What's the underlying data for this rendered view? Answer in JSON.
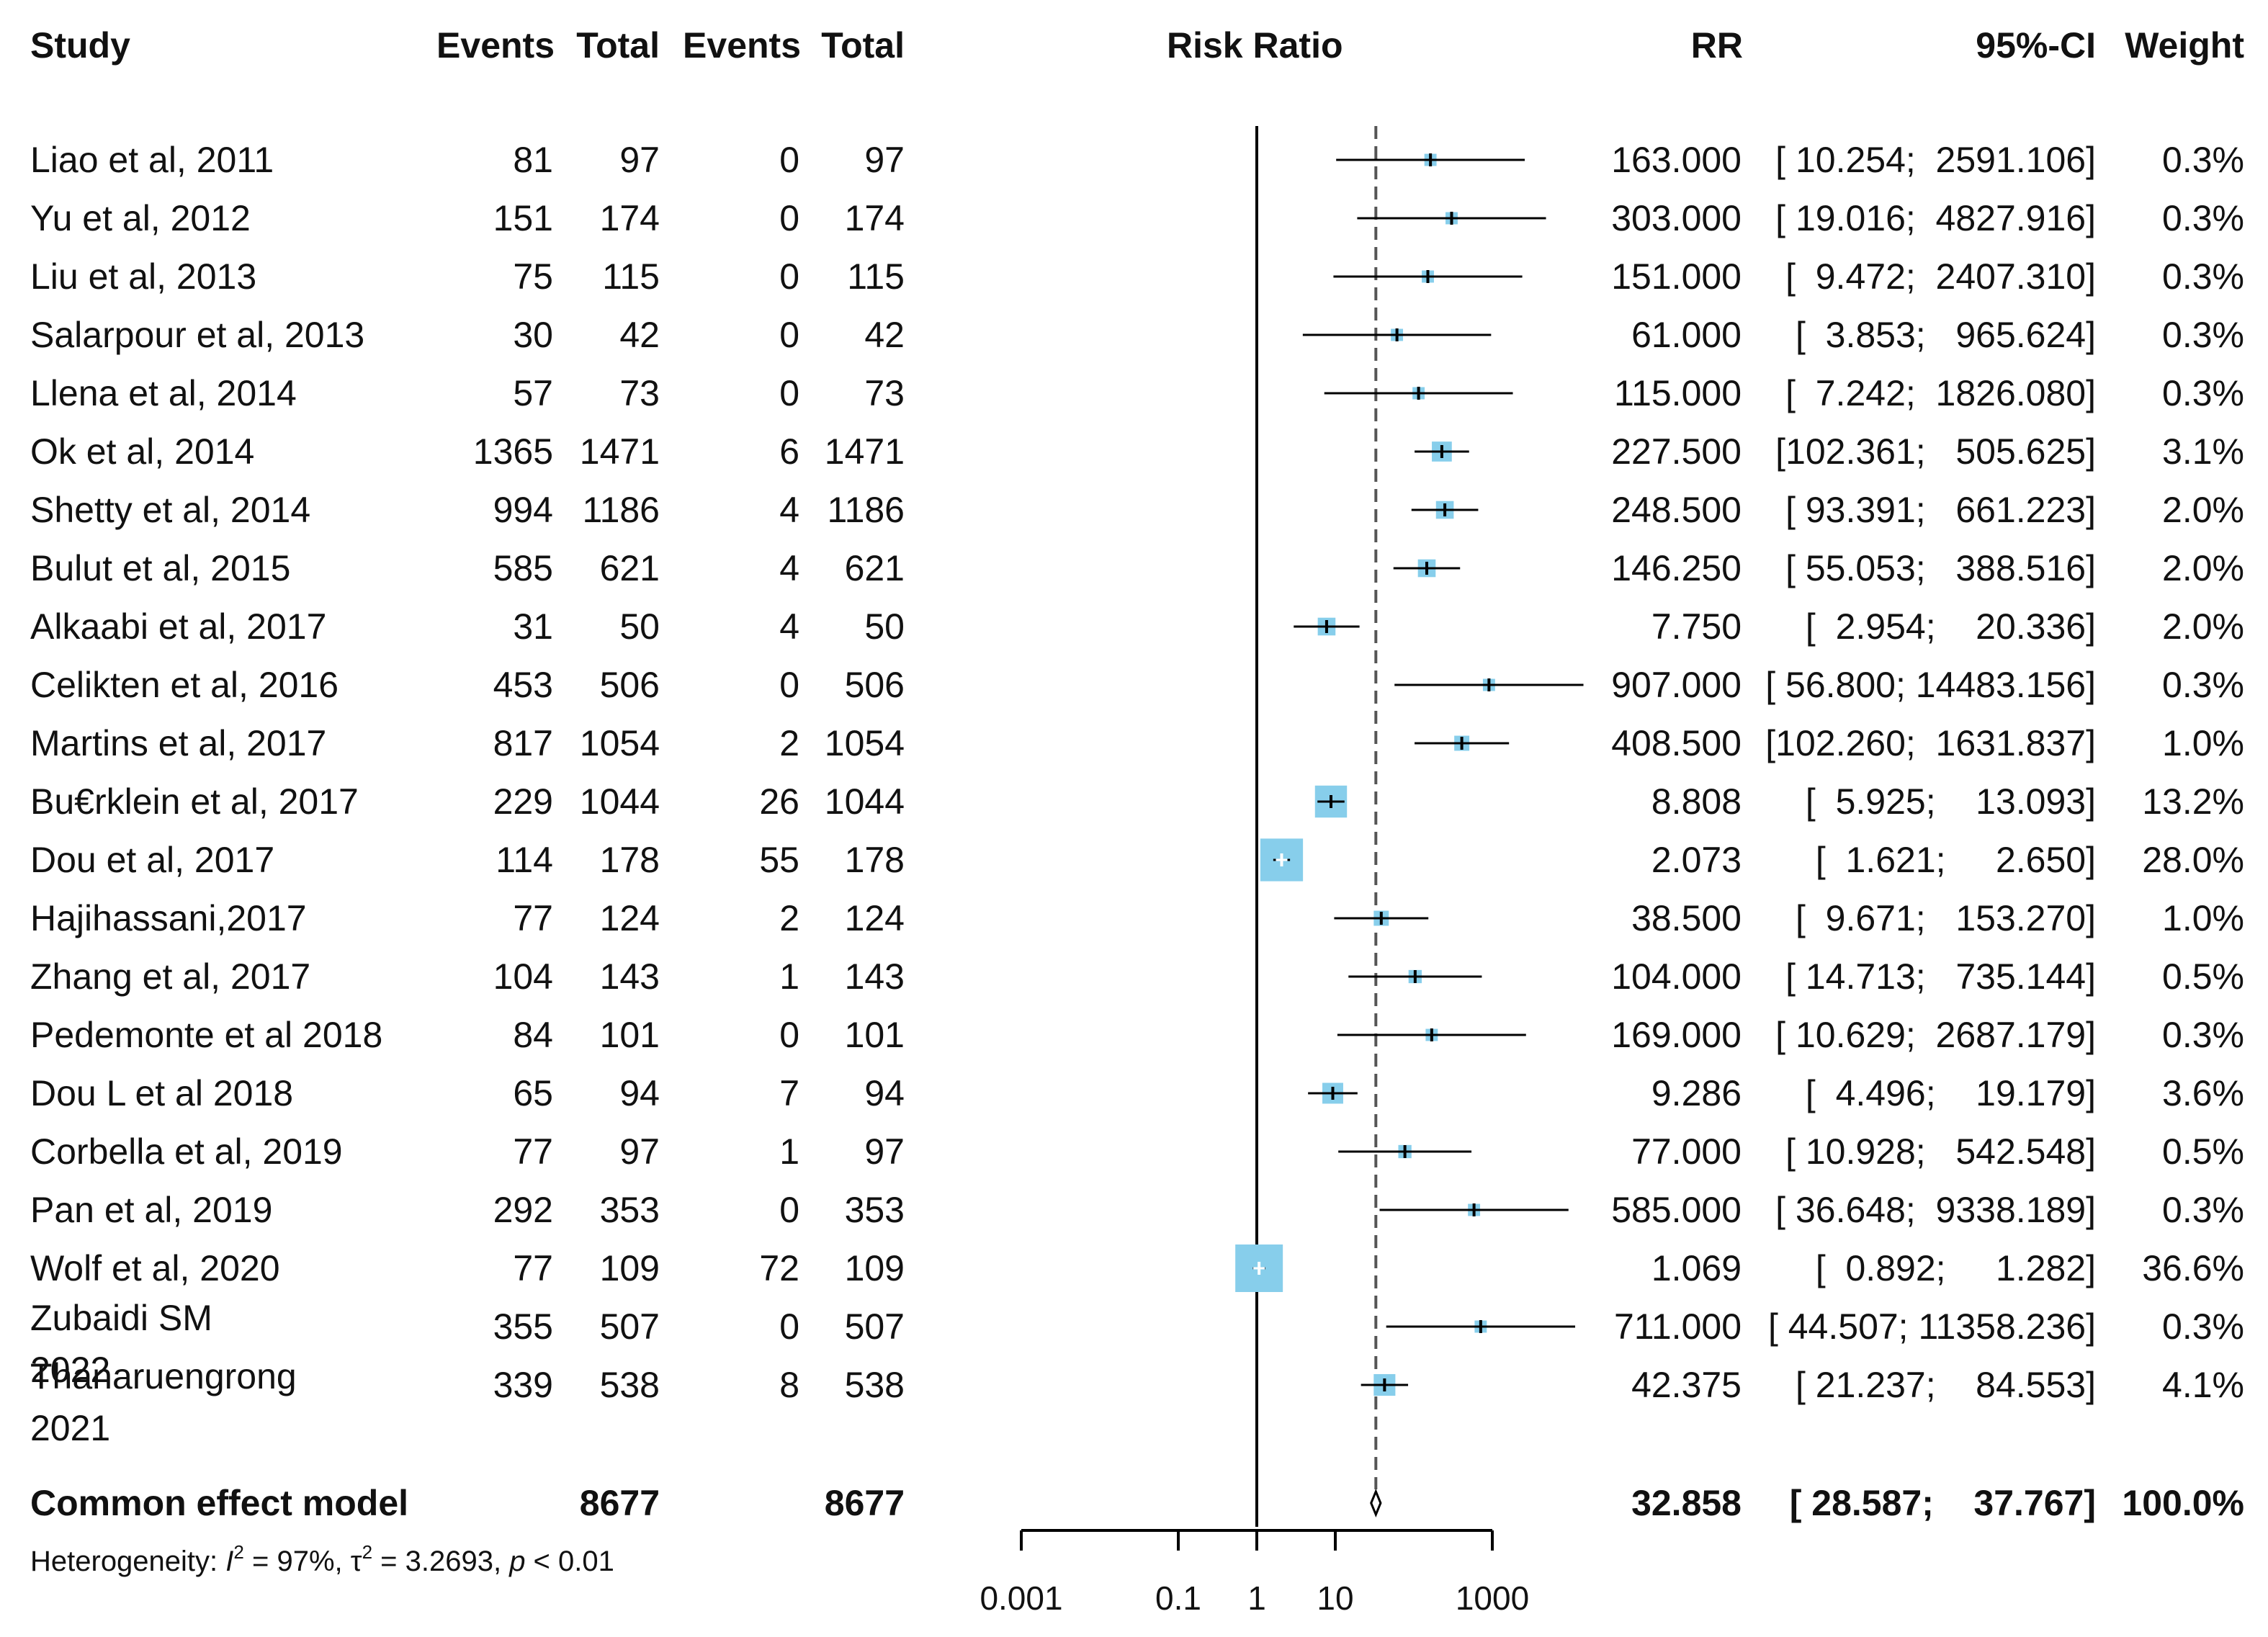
{
  "chart_data": {
    "type": "forest",
    "title": "",
    "columns": {
      "study": "Study",
      "events_exp": "Events",
      "total_exp": "Total",
      "events_ctl": "Events",
      "total_ctl": "Total",
      "plot": "Risk Ratio",
      "rr": "RR",
      "ci": "95%-CI",
      "weight": "Weight"
    },
    "xaxis": {
      "scale": "log10",
      "range": [
        0.001,
        1000
      ],
      "ticks": [
        "0.001",
        "0.1",
        "1",
        "10",
        "1000"
      ],
      "tick_values": [
        0.001,
        0.1,
        1,
        10,
        1000
      ],
      "null_value": 1,
      "reference_value": 32.858
    },
    "studies": [
      {
        "name": "Liao et al, 2011",
        "ev1": "81",
        "n1": "97",
        "ev2": "0",
        "n2": "97",
        "rr": 163.0,
        "lo": 10.254,
        "hi": 2591.106,
        "rr_text": "163.000",
        "ci_text": "[ 10.254;  2591.106]",
        "weight_text": "0.3%",
        "weight": 0.3
      },
      {
        "name": "Yu et al, 2012",
        "ev1": "151",
        "n1": "174",
        "ev2": "0",
        "n2": "174",
        "rr": 303.0,
        "lo": 19.016,
        "hi": 4827.916,
        "rr_text": "303.000",
        "ci_text": "[ 19.016;  4827.916]",
        "weight_text": "0.3%",
        "weight": 0.3
      },
      {
        "name": "Liu et al, 2013",
        "ev1": "75",
        "n1": "115",
        "ev2": "0",
        "n2": "115",
        "rr": 151.0,
        "lo": 9.472,
        "hi": 2407.31,
        "rr_text": "151.000",
        "ci_text": "[  9.472;  2407.310]",
        "weight_text": "0.3%",
        "weight": 0.3
      },
      {
        "name": "Salarpour et al, 2013",
        "ev1": "30",
        "n1": "42",
        "ev2": "0",
        "n2": "42",
        "rr": 61.0,
        "lo": 3.853,
        "hi": 965.624,
        "rr_text": "61.000",
        "ci_text": "[  3.853;   965.624]",
        "weight_text": "0.3%",
        "weight": 0.3
      },
      {
        "name": "Llena et al, 2014",
        "ev1": "57",
        "n1": "73",
        "ev2": "0",
        "n2": "73",
        "rr": 115.0,
        "lo": 7.242,
        "hi": 1826.08,
        "rr_text": "115.000",
        "ci_text": "[  7.242;  1826.080]",
        "weight_text": "0.3%",
        "weight": 0.3
      },
      {
        "name": "Ok et al, 2014",
        "ev1": "1365",
        "n1": "1471",
        "ev2": "6",
        "n2": "1471",
        "rr": 227.5,
        "lo": 102.361,
        "hi": 505.625,
        "rr_text": "227.500",
        "ci_text": "[102.361;   505.625]",
        "weight_text": "3.1%",
        "weight": 3.1
      },
      {
        "name": "Shetty et al, 2014",
        "ev1": "994",
        "n1": "1186",
        "ev2": "4",
        "n2": "1186",
        "rr": 248.5,
        "lo": 93.391,
        "hi": 661.223,
        "rr_text": "248.500",
        "ci_text": "[ 93.391;   661.223]",
        "weight_text": "2.0%",
        "weight": 2.0
      },
      {
        "name": "Bulut et al, 2015",
        "ev1": "585",
        "n1": "621",
        "ev2": "4",
        "n2": "621",
        "rr": 146.25,
        "lo": 55.053,
        "hi": 388.516,
        "rr_text": "146.250",
        "ci_text": "[ 55.053;   388.516]",
        "weight_text": "2.0%",
        "weight": 2.0
      },
      {
        "name": "Alkaabi et al, 2017",
        "ev1": "31",
        "n1": "50",
        "ev2": "4",
        "n2": "50",
        "rr": 7.75,
        "lo": 2.954,
        "hi": 20.336,
        "rr_text": "7.750",
        "ci_text": "[  2.954;    20.336]",
        "weight_text": "2.0%",
        "weight": 2.0
      },
      {
        "name": "Celikten et al, 2016",
        "ev1": "453",
        "n1": "506",
        "ev2": "0",
        "n2": "506",
        "rr": 907.0,
        "lo": 56.8,
        "hi": 14483.156,
        "rr_text": "907.000",
        "ci_text": "[ 56.800; 14483.156]",
        "weight_text": "0.3%",
        "weight": 0.3
      },
      {
        "name": "Martins et al, 2017",
        "ev1": "817",
        "n1": "1054",
        "ev2": "2",
        "n2": "1054",
        "rr": 408.5,
        "lo": 102.26,
        "hi": 1631.837,
        "rr_text": "408.500",
        "ci_text": "[102.260;  1631.837]",
        "weight_text": "1.0%",
        "weight": 1.0
      },
      {
        "name": "Bu€rklein et al, 2017",
        "ev1": "229",
        "n1": "1044",
        "ev2": "26",
        "n2": "1044",
        "rr": 8.808,
        "lo": 5.925,
        "hi": 13.093,
        "rr_text": "8.808",
        "ci_text": "[  5.925;    13.093]",
        "weight_text": "13.2%",
        "weight": 13.2
      },
      {
        "name": "Dou et al, 2017",
        "ev1": "114",
        "n1": "178",
        "ev2": "55",
        "n2": "178",
        "rr": 2.073,
        "lo": 1.621,
        "hi": 2.65,
        "rr_text": "2.073",
        "ci_text": "[  1.621;     2.650]",
        "weight_text": "28.0%",
        "weight": 28.0
      },
      {
        "name": "Hajihassani,2017",
        "ev1": "77",
        "n1": "124",
        "ev2": "2",
        "n2": "124",
        "rr": 38.5,
        "lo": 9.671,
        "hi": 153.27,
        "rr_text": "38.500",
        "ci_text": "[  9.671;   153.270]",
        "weight_text": "1.0%",
        "weight": 1.0
      },
      {
        "name": "Zhang et al, 2017",
        "ev1": "104",
        "n1": "143",
        "ev2": "1",
        "n2": "143",
        "rr": 104.0,
        "lo": 14.713,
        "hi": 735.144,
        "rr_text": "104.000",
        "ci_text": "[ 14.713;   735.144]",
        "weight_text": "0.5%",
        "weight": 0.5
      },
      {
        "name": "Pedemonte et al 2018",
        "ev1": "84",
        "n1": "101",
        "ev2": "0",
        "n2": "101",
        "rr": 169.0,
        "lo": 10.629,
        "hi": 2687.179,
        "rr_text": "169.000",
        "ci_text": "[ 10.629;  2687.179]",
        "weight_text": "0.3%",
        "weight": 0.3
      },
      {
        "name": "Dou L et al 2018",
        "ev1": "65",
        "n1": "94",
        "ev2": "7",
        "n2": "94",
        "rr": 9.286,
        "lo": 4.496,
        "hi": 19.179,
        "rr_text": "9.286",
        "ci_text": "[  4.496;    19.179]",
        "weight_text": "3.6%",
        "weight": 3.6
      },
      {
        "name": "Corbella et al, 2019",
        "ev1": "77",
        "n1": "97",
        "ev2": "1",
        "n2": "97",
        "rr": 77.0,
        "lo": 10.928,
        "hi": 542.548,
        "rr_text": "77.000",
        "ci_text": "[ 10.928;   542.548]",
        "weight_text": "0.5%",
        "weight": 0.5
      },
      {
        "name": "Pan et al, 2019",
        "ev1": "292",
        "n1": "353",
        "ev2": "0",
        "n2": "353",
        "rr": 585.0,
        "lo": 36.648,
        "hi": 9338.189,
        "rr_text": "585.000",
        "ci_text": "[ 36.648;  9338.189]",
        "weight_text": "0.3%",
        "weight": 0.3
      },
      {
        "name": "Wolf et al, 2020",
        "ev1": "77",
        "n1": "109",
        "ev2": "72",
        "n2": "109",
        "rr": 1.069,
        "lo": 0.892,
        "hi": 1.282,
        "rr_text": "1.069",
        "ci_text": "[  0.892;     1.282]",
        "weight_text": "36.6%",
        "weight": 36.6
      },
      {
        "name": "Zubaidi SM\n2022",
        "ev1": "355",
        "n1": "507",
        "ev2": "0",
        "n2": "507",
        "rr": 711.0,
        "lo": 44.507,
        "hi": 11358.236,
        "rr_text": "711.000",
        "ci_text": "[ 44.507; 11358.236]",
        "weight_text": "0.3%",
        "weight": 0.3
      },
      {
        "name": "Thanaruengrong\n2021",
        "ev1": "339",
        "n1": "538",
        "ev2": "8",
        "n2": "538",
        "rr": 42.375,
        "lo": 21.237,
        "hi": 84.553,
        "rr_text": "42.375",
        "ci_text": "[ 21.237;    84.553]",
        "weight_text": "4.1%",
        "weight": 4.1
      }
    ],
    "overall": {
      "name": "Common effect model",
      "n1": "8677",
      "n2": "8677",
      "rr": 32.858,
      "lo": 28.587,
      "hi": 37.767,
      "rr_text": "32.858",
      "ci_text": "[ 28.587;    37.767]",
      "weight_text": "100.0%"
    },
    "heterogeneity": {
      "label": "Heterogeneity: ",
      "i2_sym": "I",
      "i2_val": " = 97%, ",
      "tau2_sym": "τ",
      "tau2_val": " = 3.2693, ",
      "p_sym": "p",
      "p_val": " < 0.01"
    },
    "colors": {
      "box": "#87ceeb",
      "line": "#000000",
      "ref_line": "#555555"
    }
  }
}
